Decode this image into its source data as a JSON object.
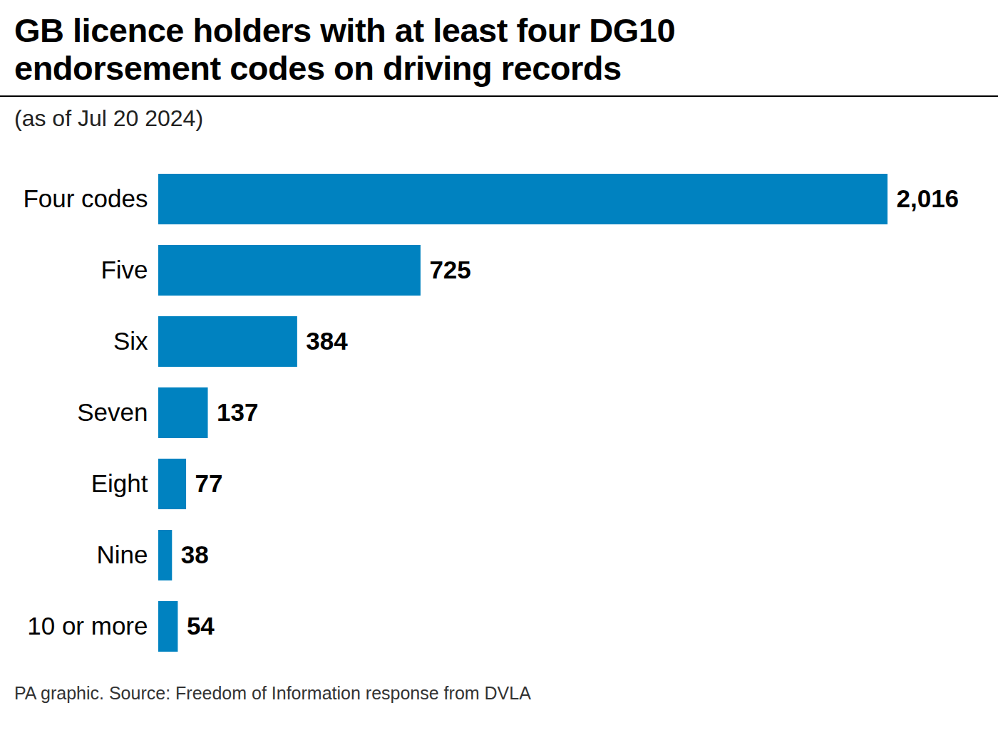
{
  "chart_data": {
    "type": "bar",
    "orientation": "horizontal",
    "title": "GB licence holders with at least four DG10 endorsement codes on driving records",
    "subtitle": "(as of Jul 20 2024)",
    "caption": "PA graphic. Source: Freedom of Information response from DVLA",
    "categories": [
      "Four codes",
      "Five",
      "Six",
      "Seven",
      "Eight",
      "Nine",
      "10 or more"
    ],
    "values": [
      2016,
      725,
      384,
      137,
      77,
      38,
      54
    ],
    "value_labels": [
      "2,016",
      "725",
      "384",
      "137",
      "77",
      "38",
      "54"
    ],
    "color": "#0082c0",
    "data_labels": true,
    "tick_labels": "y",
    "grid": false
  }
}
